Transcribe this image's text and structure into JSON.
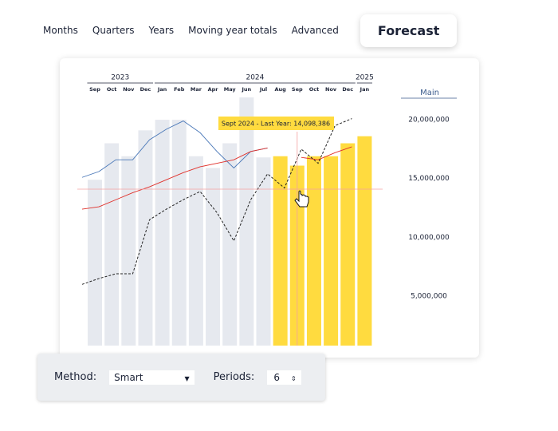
{
  "tabs": [
    "Months",
    "Quarters",
    "Years",
    "Moving year totals",
    "Advanced",
    "Forecast"
  ],
  "active_tab": 5,
  "controls": {
    "method_label": "Method:",
    "method_value": "Smart",
    "periods_label": "Periods:",
    "periods_value": "6"
  },
  "chart_data": {
    "type": "bar",
    "ylabel": "Main",
    "categories": [
      "Sep",
      "Oct",
      "Nov",
      "Dec",
      "Jan",
      "Feb",
      "Mar",
      "Apr",
      "May",
      "Jun",
      "Jul",
      "Aug",
      "Sep",
      "Oct",
      "Nov",
      "Dec",
      "Jan"
    ],
    "year_groups": [
      {
        "label": "2023",
        "span": 4
      },
      {
        "label": "2024",
        "span": 12
      },
      {
        "label": "2025",
        "span": 1
      }
    ],
    "values": [
      14900000,
      18000000,
      16900000,
      19100000,
      20000000,
      20000000,
      16900000,
      15900000,
      18000000,
      21900000,
      16800000,
      16900000,
      16100000,
      16900000,
      16900000,
      18000000,
      18600000
    ],
    "colors": [
      "#e6e9ef",
      "#e6e9ef",
      "#e6e9ef",
      "#e6e9ef",
      "#e6e9ef",
      "#e6e9ef",
      "#e6e9ef",
      "#e6e9ef",
      "#e6e9ef",
      "#e6e9ef",
      "#e6e9ef",
      "#ffdb3f",
      "#ffdb3f",
      "#ffdb3f",
      "#ffdb3f",
      "#ffdb3f",
      "#ffdb3f"
    ],
    "lines": [
      {
        "color": "#4a78b8",
        "dash": false,
        "values": [
          15100000,
          15600000,
          16600000,
          16600000,
          18300000,
          19200000,
          19900000,
          18900000,
          17300000,
          15900000,
          17300000,
          17600000,
          null,
          null,
          null,
          null,
          null
        ]
      },
      {
        "color": "#e0302a",
        "dash": false,
        "values": [
          12400000,
          12600000,
          13200000,
          13800000,
          14300000,
          14900000,
          15500000,
          16000000,
          16300000,
          16600000,
          17300000,
          17600000,
          null,
          16800000,
          16600000,
          17200000,
          17700000
        ]
      },
      {
        "color": "#222222",
        "dash": true,
        "values": [
          6000000,
          6500000,
          6900000,
          6900000,
          11500000,
          12400000,
          13200000,
          13900000,
          12100000,
          9700000,
          13200000,
          15400000,
          14200000,
          17500000,
          16300000,
          19500000,
          20100000
        ]
      }
    ],
    "annotation": {
      "text": "Sept 2024 - Last Year: 14,098,386",
      "index": 12,
      "value": 14098386
    },
    "ylim": [
      0,
      22000000
    ],
    "yticks": [
      {
        "value": 5000000,
        "label": "5,000,000"
      },
      {
        "value": 10000000,
        "label": "10,000,000"
      },
      {
        "value": 15000000,
        "label": "15,000,000"
      },
      {
        "value": 20000000,
        "label": "20,000,000"
      }
    ],
    "grid": false
  }
}
